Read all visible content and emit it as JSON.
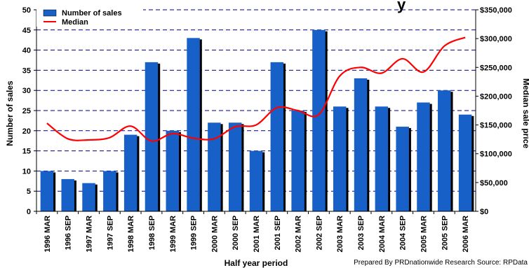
{
  "chart_data": {
    "type": "bar",
    "title": "y",
    "categories": [
      "1996 MAR",
      "1996 SEP",
      "1997 MAR",
      "1997 SEP",
      "1998 MAR",
      "1998 SEP",
      "1999 MAR",
      "1999 SEP",
      "2000 MAR",
      "2000 SEP",
      "2001 MAR",
      "2001 SEP",
      "2002 MAR",
      "2002 SEP",
      "2003 MAR",
      "2003 SEP",
      "2004 MAR",
      "2004 SEP",
      "2005 MAR",
      "2005 SEP",
      "2006 MAR"
    ],
    "series": [
      {
        "name": "Number of sales",
        "type": "bar",
        "axis": "left",
        "color": "#1660c8",
        "values": [
          10,
          8,
          7,
          10,
          19,
          37,
          20,
          43,
          22,
          22,
          15,
          37,
          25,
          45,
          26,
          33,
          26,
          21,
          27,
          30,
          24
        ]
      },
      {
        "name": "Median",
        "type": "line",
        "axis": "right",
        "color": "#ff0000",
        "values": [
          153000,
          126000,
          124000,
          128000,
          148000,
          122000,
          135000,
          127000,
          126000,
          147000,
          150000,
          180000,
          175000,
          168000,
          235000,
          250000,
          240000,
          265000,
          242000,
          287000,
          302000
        ]
      }
    ],
    "xlabel": "Half year period",
    "ylabel": "Number of sales",
    "y2label": "Median sale price",
    "ylim": [
      0,
      50
    ],
    "y2lim": [
      0,
      350000
    ],
    "yticks": [
      0,
      5,
      10,
      15,
      20,
      25,
      30,
      35,
      40,
      45,
      50
    ],
    "y2ticks": [
      "$0",
      "$50,000",
      "$100,000",
      "$150,000",
      "$200,000",
      "$250,000",
      "$300,000",
      "$350,000"
    ],
    "grid": "dashed horizontal",
    "legend": "top-left",
    "credit": "Prepared By PRDnationwide Research   Source: RPData"
  }
}
